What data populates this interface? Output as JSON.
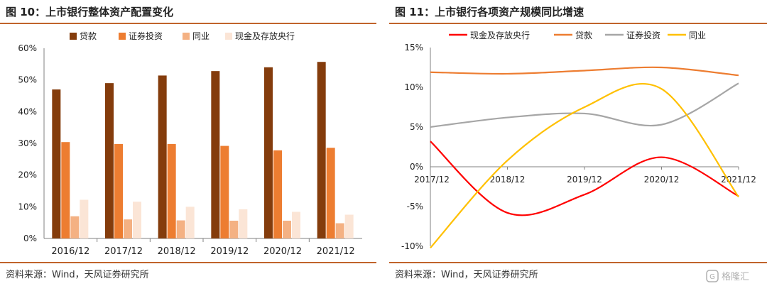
{
  "left": {
    "title": "图 10：上市银行整体资产配置变化",
    "source": "资料来源：Wind，天风证券研究所"
  },
  "right": {
    "title": "图 11：上市银行各项资产规模同比增速",
    "source": "资料来源：Wind，天风证券研究所"
  },
  "watermark": {
    "text": "格隆汇"
  },
  "chart_data": [
    {
      "type": "bar",
      "categories": [
        "2016/12",
        "2017/12",
        "2018/12",
        "2019/12",
        "2020/12",
        "2021/12"
      ],
      "series": [
        {
          "name": "贷款",
          "color": "#843c0c",
          "values": [
            47.0,
            49.0,
            51.4,
            52.8,
            54.0,
            55.7
          ]
        },
        {
          "name": "证券投资",
          "color": "#ed7d31",
          "values": [
            30.4,
            29.8,
            29.8,
            29.2,
            27.8,
            28.6
          ]
        },
        {
          "name": "同业",
          "color": "#f4b183",
          "values": [
            7.0,
            6.0,
            5.7,
            5.6,
            5.6,
            4.8
          ]
        },
        {
          "name": "现金及存放央行",
          "color": "#fbe5d6",
          "values": [
            12.2,
            11.6,
            10.0,
            9.2,
            8.4,
            7.5
          ]
        }
      ],
      "yticks": [
        "0%",
        "10%",
        "20%",
        "30%",
        "40%",
        "50%",
        "60%"
      ],
      "ylim": [
        0,
        60
      ],
      "legend": "top"
    },
    {
      "type": "line",
      "categories": [
        "2017/12",
        "2018/12",
        "2019/12",
        "2020/12",
        "2021/12"
      ],
      "series": [
        {
          "name": "现金及存放央行",
          "color": "#ff0000",
          "values": [
            3.2,
            -5.8,
            -3.5,
            1.2,
            -3.7
          ]
        },
        {
          "name": "贷款",
          "color": "#ed7d31",
          "values": [
            11.9,
            11.7,
            12.1,
            12.5,
            11.5
          ]
        },
        {
          "name": "证券投资",
          "color": "#a6a6a6",
          "values": [
            5.0,
            6.2,
            6.7,
            5.3,
            10.5
          ]
        },
        {
          "name": "同业",
          "color": "#ffc000",
          "values": [
            -10.2,
            0.8,
            7.5,
            9.8,
            -3.8
          ]
        }
      ],
      "yticks": [
        "15%",
        "10%",
        "5%",
        "0%",
        "-5%",
        "-10%"
      ],
      "ylim": [
        -10,
        15
      ],
      "legend": "top"
    }
  ]
}
